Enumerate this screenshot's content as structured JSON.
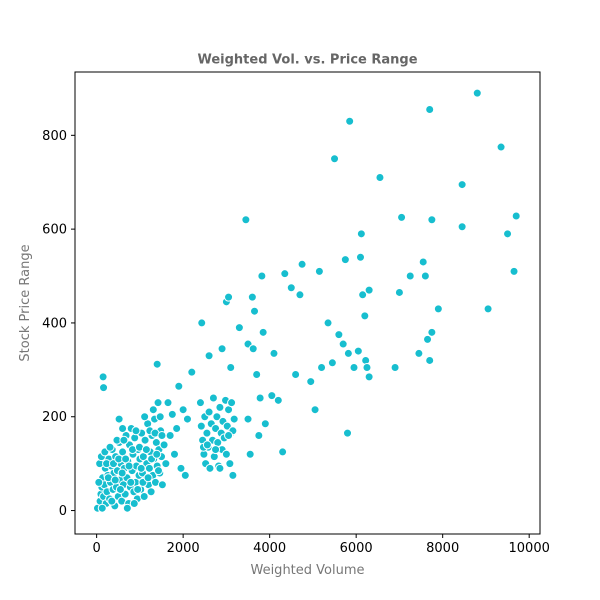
{
  "chart_data": {
    "type": "scatter",
    "title": "Weighted Vol. vs. Price Range",
    "xlabel": "Weighted Volume",
    "ylabel": "Stock Price Range",
    "xlim": [
      -500,
      10250
    ],
    "ylim": [
      -50,
      935
    ],
    "xticks": [
      0,
      2000,
      4000,
      6000,
      8000,
      10000
    ],
    "yticks": [
      0,
      200,
      400,
      600,
      800
    ],
    "grid": false,
    "marker_color": "#17becf",
    "marker_edge": "#ffffff",
    "series": [
      {
        "points": [
          [
            20,
            5
          ],
          [
            80,
            20
          ],
          [
            100,
            35
          ],
          [
            120,
            50
          ],
          [
            140,
            70
          ],
          [
            160,
            30
          ],
          [
            180,
            55
          ],
          [
            200,
            90
          ],
          [
            220,
            15
          ],
          [
            240,
            40
          ],
          [
            260,
            75
          ],
          [
            280,
            110
          ],
          [
            300,
            25
          ],
          [
            320,
            60
          ],
          [
            340,
            95
          ],
          [
            360,
            130
          ],
          [
            380,
            45
          ],
          [
            400,
            80
          ],
          [
            420,
            10
          ],
          [
            440,
            115
          ],
          [
            460,
            50
          ],
          [
            480,
            85
          ],
          [
            500,
            30
          ],
          [
            520,
            145
          ],
          [
            540,
            65
          ],
          [
            560,
            100
          ],
          [
            580,
            20
          ],
          [
            600,
            125
          ],
          [
            620,
            55
          ],
          [
            640,
            90
          ],
          [
            660,
            35
          ],
          [
            680,
            160
          ],
          [
            700,
            70
          ],
          [
            720,
            105
          ],
          [
            740,
            15
          ],
          [
            760,
            140
          ],
          [
            780,
            50
          ],
          [
            800,
            175
          ],
          [
            820,
            85
          ],
          [
            840,
            120
          ],
          [
            860,
            40
          ],
          [
            880,
            155
          ],
          [
            900,
            60
          ],
          [
            920,
            95
          ],
          [
            940,
            25
          ],
          [
            960,
            130
          ],
          [
            980,
            75
          ],
          [
            1000,
            110
          ],
          [
            1020,
            45
          ],
          [
            1040,
            165
          ],
          [
            1060,
            80
          ],
          [
            1080,
            115
          ],
          [
            1100,
            30
          ],
          [
            1120,
            150
          ],
          [
            1140,
            65
          ],
          [
            1160,
            100
          ],
          [
            1180,
            185
          ],
          [
            1200,
            55
          ],
          [
            1220,
            90
          ],
          [
            1240,
            125
          ],
          [
            1260,
            40
          ],
          [
            1280,
            160
          ],
          [
            1300,
            75
          ],
          [
            1320,
            110
          ],
          [
            1340,
            195
          ],
          [
            1360,
            60
          ],
          [
            1380,
            145
          ],
          [
            1400,
            95
          ],
          [
            1420,
            230
          ],
          [
            1440,
            130
          ],
          [
            1460,
            80
          ],
          [
            1480,
            170
          ],
          [
            1500,
            115
          ],
          [
            1520,
            55
          ],
          [
            1560,
            140
          ],
          [
            1600,
            100
          ],
          [
            1650,
            230
          ],
          [
            1700,
            160
          ],
          [
            1750,
            205
          ],
          [
            1800,
            120
          ],
          [
            1850,
            175
          ],
          [
            1900,
            265
          ],
          [
            1950,
            90
          ],
          [
            2000,
            215
          ],
          [
            2050,
            75
          ],
          [
            2100,
            195
          ],
          [
            2200,
            295
          ],
          [
            150,
            285
          ],
          [
            160,
            262
          ],
          [
            520,
            195
          ],
          [
            600,
            175
          ],
          [
            1400,
            312
          ],
          [
            50,
            60
          ],
          [
            70,
            100
          ],
          [
            110,
            115
          ],
          [
            130,
            5
          ],
          [
            190,
            125
          ],
          [
            230,
            100
          ],
          [
            270,
            70
          ],
          [
            310,
            135
          ],
          [
            350,
            20
          ],
          [
            390,
            100
          ],
          [
            430,
            65
          ],
          [
            470,
            150
          ],
          [
            510,
            110
          ],
          [
            550,
            45
          ],
          [
            590,
            80
          ],
          [
            630,
            150
          ],
          [
            670,
            110
          ],
          [
            710,
            5
          ],
          [
            750,
            95
          ],
          [
            790,
            60
          ],
          [
            830,
            130
          ],
          [
            870,
            15
          ],
          [
            910,
            170
          ],
          [
            950,
            45
          ],
          [
            990,
            135
          ],
          [
            1030,
            90
          ],
          [
            1070,
            60
          ],
          [
            1110,
            200
          ],
          [
            1150,
            130
          ],
          [
            1190,
            70
          ],
          [
            1230,
            170
          ],
          [
            1270,
            110
          ],
          [
            1310,
            215
          ],
          [
            1350,
            165
          ],
          [
            1390,
            120
          ],
          [
            1430,
            85
          ],
          [
            1470,
            200
          ],
          [
            1510,
            160
          ],
          [
            2400,
            230
          ],
          [
            2420,
            180
          ],
          [
            2450,
            150
          ],
          [
            2480,
            120
          ],
          [
            2500,
            200
          ],
          [
            2520,
            100
          ],
          [
            2550,
            165
          ],
          [
            2580,
            135
          ],
          [
            2600,
            210
          ],
          [
            2620,
            90
          ],
          [
            2650,
            185
          ],
          [
            2680,
            150
          ],
          [
            2700,
            240
          ],
          [
            2720,
            115
          ],
          [
            2750,
            175
          ],
          [
            2780,
            200
          ],
          [
            2800,
            145
          ],
          [
            2820,
            95
          ],
          [
            2850,
            220
          ],
          [
            2880,
            165
          ],
          [
            2900,
            130
          ],
          [
            2920,
            190
          ],
          [
            2950,
            155
          ],
          [
            2980,
            235
          ],
          [
            3000,
            120
          ],
          [
            3020,
            180
          ],
          [
            3050,
            215
          ],
          [
            3080,
            100
          ],
          [
            3100,
            165
          ],
          [
            3120,
            230
          ],
          [
            3150,
            75
          ],
          [
            3180,
            195
          ],
          [
            2430,
            400
          ],
          [
            2600,
            330
          ],
          [
            2900,
            345
          ],
          [
            3000,
            445
          ],
          [
            3050,
            455
          ],
          [
            3100,
            305
          ],
          [
            3300,
            390
          ],
          [
            3450,
            620
          ],
          [
            3500,
            195
          ],
          [
            3500,
            355
          ],
          [
            3550,
            120
          ],
          [
            3600,
            455
          ],
          [
            3620,
            345
          ],
          [
            3650,
            425
          ],
          [
            3700,
            290
          ],
          [
            3750,
            160
          ],
          [
            3780,
            240
          ],
          [
            3820,
            500
          ],
          [
            3850,
            380
          ],
          [
            3900,
            185
          ],
          [
            4050,
            245
          ],
          [
            4100,
            335
          ],
          [
            4200,
            235
          ],
          [
            4300,
            125
          ],
          [
            4350,
            505
          ],
          [
            4500,
            475
          ],
          [
            4600,
            290
          ],
          [
            4700,
            460
          ],
          [
            4750,
            525
          ],
          [
            4950,
            275
          ],
          [
            5050,
            215
          ],
          [
            5150,
            510
          ],
          [
            5200,
            305
          ],
          [
            5350,
            400
          ],
          [
            5450,
            315
          ],
          [
            5500,
            750
          ],
          [
            5600,
            375
          ],
          [
            5700,
            355
          ],
          [
            5750,
            535
          ],
          [
            5800,
            165
          ],
          [
            5820,
            335
          ],
          [
            5850,
            830
          ],
          [
            5950,
            305
          ],
          [
            6050,
            340
          ],
          [
            6100,
            540
          ],
          [
            6120,
            590
          ],
          [
            6150,
            460
          ],
          [
            6200,
            415
          ],
          [
            6220,
            320
          ],
          [
            6250,
            305
          ],
          [
            6300,
            285
          ],
          [
            6300,
            470
          ],
          [
            6550,
            710
          ],
          [
            6900,
            305
          ],
          [
            7000,
            465
          ],
          [
            7050,
            625
          ],
          [
            7250,
            500
          ],
          [
            7450,
            335
          ],
          [
            7550,
            530
          ],
          [
            7600,
            500
          ],
          [
            7650,
            365
          ],
          [
            7700,
            855
          ],
          [
            7700,
            320
          ],
          [
            7750,
            380
          ],
          [
            7750,
            620
          ],
          [
            7900,
            430
          ],
          [
            8450,
            605
          ],
          [
            8450,
            695
          ],
          [
            8800,
            890
          ],
          [
            9050,
            430
          ],
          [
            9350,
            775
          ],
          [
            9500,
            590
          ],
          [
            9650,
            510
          ],
          [
            9700,
            628
          ],
          [
            7000,
            465
          ],
          [
            2470,
            135
          ],
          [
            2560,
            140
          ],
          [
            3150,
            170
          ],
          [
            2750,
            130
          ],
          [
            2850,
            90
          ],
          [
            3050,
            160
          ]
        ]
      }
    ]
  }
}
